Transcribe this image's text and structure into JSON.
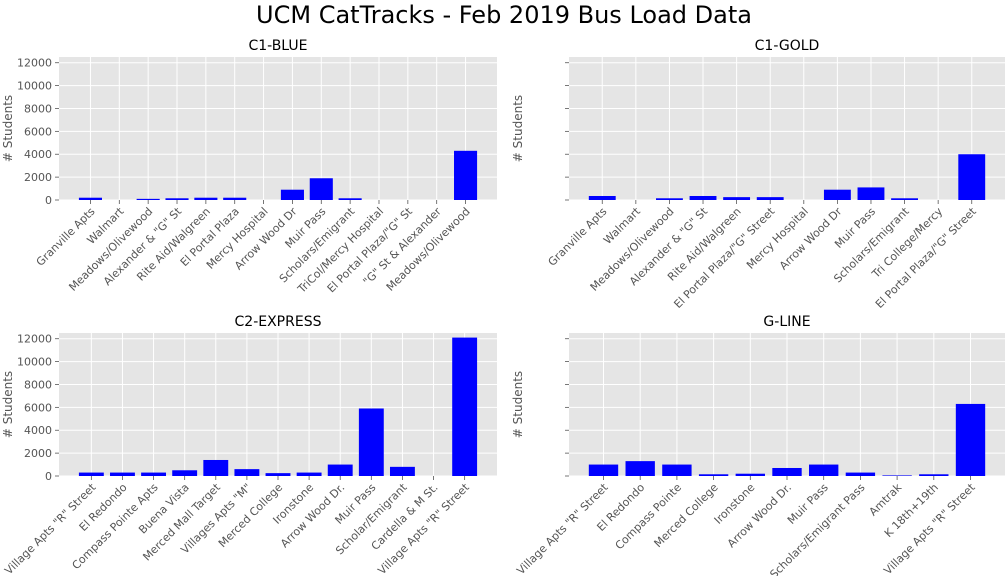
{
  "figure": {
    "title": "UCM CatTracks - Feb 2019 Bus Load Data"
  },
  "colors": {
    "bar": "#0000ff",
    "panel_bg": "#e5e5e5",
    "grid": "#ffffff",
    "tick_text": "#555555",
    "label_text": "#555555"
  },
  "chart_data": [
    {
      "type": "bar",
      "title": "C1-BLUE",
      "ylabel": "# Students",
      "ylim": [
        0,
        12500
      ],
      "yticks": [
        "0",
        "2000",
        "4000",
        "6000",
        "8000",
        "10000",
        "12000"
      ],
      "grid": true,
      "categories": [
        "Granville Apts",
        "Walmart",
        "Meadows/Olivewood",
        "Alexander & \"G\" St",
        "Rite Aid/Walgreen",
        "El Portal Plaza",
        "Mercy Hospital",
        "Arrow Wood Dr",
        "Muir Pass",
        "Scholars/Emigrant",
        "TriCol/Mercy Hospital",
        "El Portal Plaza/\"G\" St",
        "\"G\" St & Alexander",
        "Meadows/Olivewood"
      ],
      "values": [
        200,
        0,
        100,
        150,
        200,
        200,
        0,
        900,
        1900,
        150,
        0,
        0,
        0,
        4300
      ]
    },
    {
      "type": "bar",
      "title": "C1-GOLD",
      "ylabel": "# Students",
      "ylim": [
        0,
        12500
      ],
      "yticks": [
        "",
        "",
        "",
        "",
        "",
        "",
        ""
      ],
      "grid": true,
      "categories": [
        "Granville Apts",
        "Walmart",
        "Meadows/Olivewood",
        "Alexander & \"G\" St",
        "Rite Aid/Walgreen",
        "El Portal Plaza/\"G\" Street",
        "Mercy Hospital",
        "Arrow Wood Dr",
        "Muir Pass",
        "Scholars/Emigrant",
        "Tri College/Mercy",
        "El Portal Plaza/\"G\" Street"
      ],
      "values": [
        350,
        0,
        150,
        350,
        250,
        250,
        0,
        900,
        1100,
        150,
        0,
        4000
      ]
    },
    {
      "type": "bar",
      "title": "C2-EXPRESS",
      "ylabel": "# Students",
      "ylim": [
        0,
        12500
      ],
      "yticks": [
        "0",
        "2000",
        "4000",
        "6000",
        "8000",
        "10000",
        "12000"
      ],
      "grid": true,
      "categories": [
        "Village Apts \"R\" Street",
        "El Redondo",
        "Compass Pointe Apts",
        "Buena Vista",
        "Merced Mall Target",
        "Villages Apts \"M\"",
        "Merced College",
        "Ironstone",
        "Arrow Wood Dr.",
        "Muir Pass",
        "Scholar/Emigrant",
        "Cardella & M St.",
        "Village Apts \"R\" Street"
      ],
      "values": [
        300,
        300,
        300,
        500,
        1400,
        600,
        250,
        300,
        1000,
        5900,
        800,
        0,
        12100
      ]
    },
    {
      "type": "bar",
      "title": "G-LINE",
      "ylabel": "# Students",
      "ylim": [
        0,
        12500
      ],
      "yticks": [
        "",
        "",
        "",
        "",
        "",
        "",
        ""
      ],
      "grid": true,
      "categories": [
        "Village Apts \"R\" Street",
        "El Redondo",
        "Compass Pointe",
        "Merced College",
        "Ironstone",
        "Arrow Wood Dr.",
        "Muir Pass",
        "Scholars/Emigrant Pass",
        "Amtrak",
        "K 18th+19th",
        "Village Apts \"R\" Street"
      ],
      "values": [
        1000,
        1300,
        1000,
        150,
        200,
        700,
        1000,
        300,
        50,
        150,
        6300
      ]
    }
  ]
}
